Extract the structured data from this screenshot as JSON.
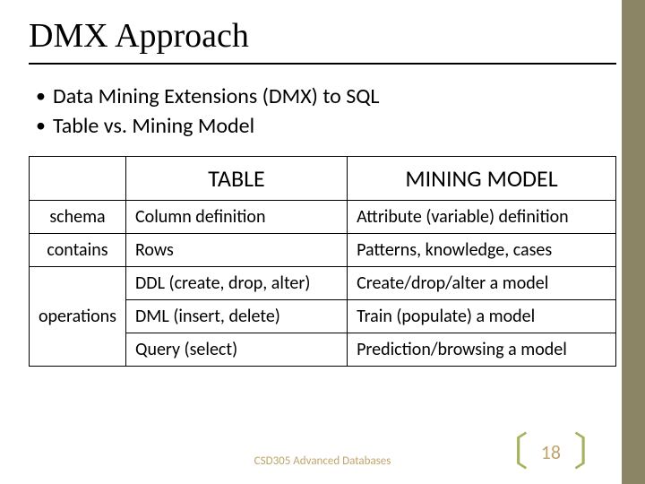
{
  "title": "DMX Approach",
  "bullets": [
    "Data Mining Extensions (DMX) to SQL",
    "Table vs. Mining Model"
  ],
  "table": {
    "headers": {
      "col1": "TABLE",
      "col2": "MINING MODEL"
    },
    "rows": [
      {
        "head": "schema",
        "c1": "Column definition",
        "c2": "Attribute (variable) definition"
      },
      {
        "head": "contains",
        "c1": "Rows",
        "c2": "Patterns, knowledge, cases"
      },
      {
        "head": "",
        "c1": "DDL (create, drop, alter)",
        "c2": "Create/drop/alter a model"
      },
      {
        "head": "operations",
        "c1": "DML (insert, delete)",
        "c2": "Train (populate) a model"
      },
      {
        "head": "",
        "c1": "Query (select)",
        "c2": "Prediction/browsing a model"
      }
    ],
    "operations_rowspan": 3,
    "col_widths": [
      "16%",
      "38%",
      "46%"
    ]
  },
  "footer": "CSD305 Advanced Databases",
  "page_number": "18",
  "colors": {
    "sidebar": "#8b8465",
    "bracket": "#a8b25e",
    "footer_text": "#bfa56a"
  }
}
